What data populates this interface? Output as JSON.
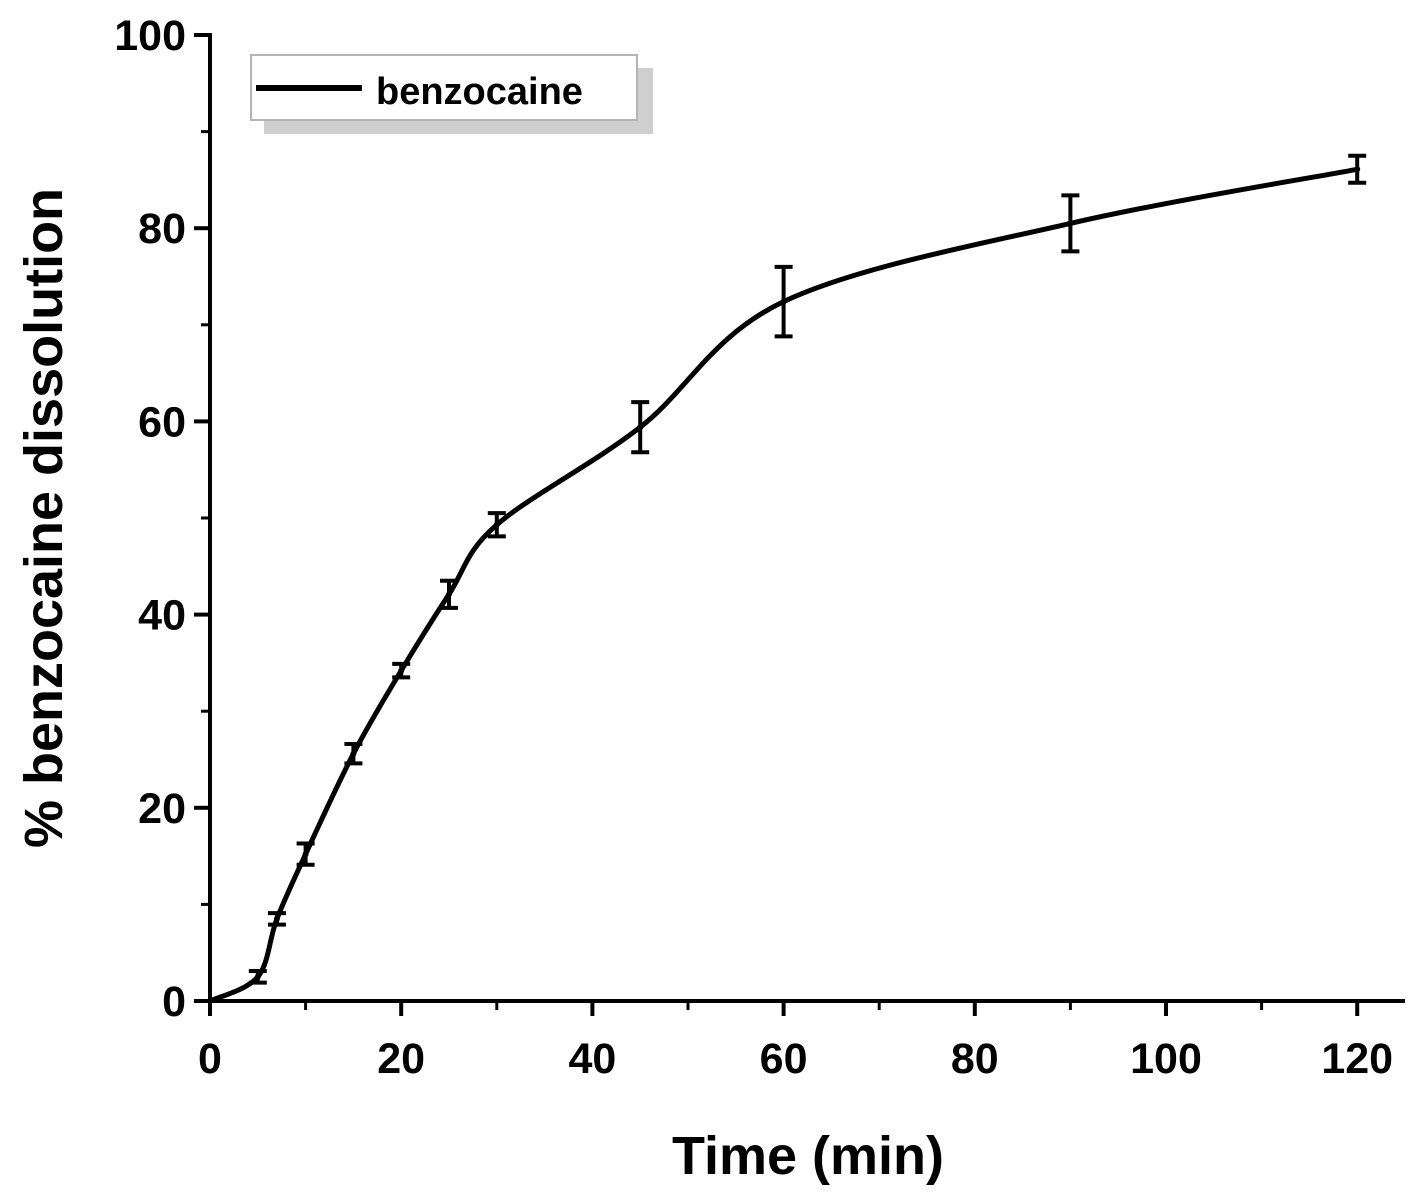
{
  "chart_data": {
    "type": "line",
    "xlabel": "Time (min)",
    "ylabel": "% benzocaine dissolution",
    "xlim": [
      0,
      125
    ],
    "ylim": [
      0,
      100
    ],
    "x_ticks": [
      0,
      20,
      40,
      60,
      80,
      100,
      120
    ],
    "y_ticks": [
      0,
      20,
      40,
      60,
      80,
      100
    ],
    "grid": false,
    "legend_position": "top-left",
    "line_color": "#000000",
    "series": [
      {
        "name": "benzocaine",
        "x": [
          0,
          5,
          7,
          10,
          15,
          20,
          25,
          30,
          45,
          60,
          90,
          120
        ],
        "y": [
          0,
          2.5,
          8.5,
          15.2,
          25.6,
          34.2,
          42.1,
          49.3,
          59.4,
          72.4,
          80.5,
          86.1
        ],
        "error": [
          0,
          0.6,
          0.6,
          1.1,
          1.0,
          0.7,
          1.4,
          1.2,
          2.6,
          3.6,
          2.9,
          1.4
        ]
      }
    ]
  }
}
